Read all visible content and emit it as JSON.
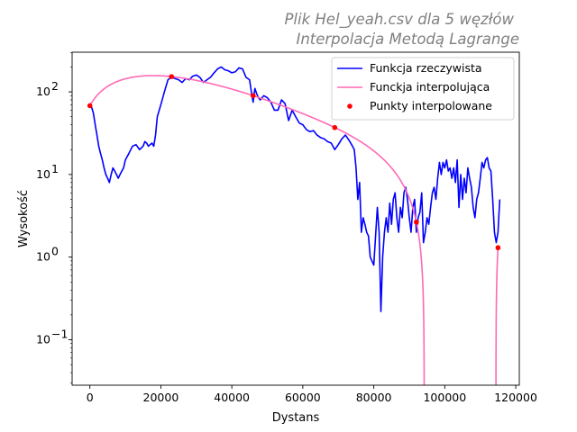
{
  "chart_data": {
    "type": "line",
    "title_line1": "Plik Hel_yeah.csv dla 5 węzłów",
    "title_line2": "Interpolacja Metodą Lagrange",
    "xlabel": "Dystans",
    "ylabel": "Wysokość",
    "xlim": [
      -5000,
      121000
    ],
    "ylim_log10": [
      -1.55,
      2.48
    ],
    "yscale": "log",
    "x_ticks": [
      0,
      20000,
      40000,
      60000,
      80000,
      100000,
      120000
    ],
    "x_tick_labels": [
      "0",
      "20000",
      "40000",
      "60000",
      "80000",
      "100000",
      "120000"
    ],
    "y_tick_exponents": [
      -1,
      0,
      1,
      2
    ],
    "legend_position": "top-right",
    "colors": {
      "actual": "#0000ff",
      "interp": "#ff69b4",
      "nodes": "#ff0000"
    },
    "legend": [
      {
        "label": "Funkcja rzeczywista",
        "style": "line",
        "color": "#0000ff"
      },
      {
        "label": "Funckja interpolująca",
        "style": "line",
        "color": "#ff69b4"
      },
      {
        "label": "Punkty interpolowane",
        "style": "marker",
        "color": "#ff0000"
      }
    ],
    "series": [
      {
        "name": "Funkcja rzeczywista",
        "color": "#0000ff",
        "x": [
          0,
          500,
          1000,
          1500,
          2000,
          2500,
          3000,
          3500,
          4000,
          4500,
          5000,
          5500,
          6000,
          6500,
          7000,
          7500,
          8000,
          8500,
          9000,
          9500,
          10000,
          11000,
          12000,
          13000,
          14000,
          15000,
          15500,
          16000,
          16500,
          17000,
          17500,
          18000,
          18500,
          19000,
          20000,
          21000,
          22000,
          23000,
          24000,
          25000,
          26000,
          27000,
          28000,
          29000,
          30000,
          31000,
          32000,
          33000,
          34000,
          35000,
          36000,
          37000,
          38000,
          39000,
          40000,
          41000,
          42000,
          43000,
          44000,
          45000,
          45500,
          46000,
          46500,
          47000,
          47500,
          48000,
          49000,
          50000,
          51000,
          52000,
          53000,
          54000,
          55000,
          56000,
          57000,
          58000,
          59000,
          60000,
          61000,
          62000,
          63000,
          64000,
          65000,
          66000,
          67000,
          68000,
          69000,
          70000,
          71000,
          72000,
          72500,
          73000,
          73500,
          74000,
          74500,
          75000,
          75500,
          76000,
          76500,
          77000,
          77500,
          78000,
          78500,
          79000,
          80000,
          81000,
          81500,
          82000,
          82500,
          83000,
          83500,
          84000,
          84500,
          85000,
          85500,
          86000,
          86500,
          87000,
          87500,
          88000,
          88500,
          89000,
          89500,
          90000,
          90500,
          91000,
          91500,
          92000,
          92500,
          93000,
          93500,
          94000,
          94500,
          95000,
          95500,
          96000,
          96500,
          97000,
          97500,
          98000,
          98500,
          99000,
          99500,
          100000,
          100500,
          101000,
          101500,
          102000,
          102500,
          103000,
          103500,
          104000,
          104500,
          105000,
          105500,
          106000,
          106500,
          107000,
          107500,
          108000,
          108500,
          109000,
          109500,
          110000,
          110500,
          111000,
          111500,
          112000,
          112500,
          113000,
          113500,
          114000,
          114500,
          115000,
          115300,
          115500
        ],
        "y": [
          68,
          65,
          55,
          40,
          30,
          22,
          18,
          15,
          12,
          10,
          9,
          8,
          10,
          12,
          11,
          10,
          9,
          10,
          11,
          12,
          15,
          18,
          22,
          23,
          20,
          22,
          25,
          24,
          22,
          23,
          24,
          22,
          30,
          50,
          70,
          100,
          140,
          150,
          145,
          140,
          130,
          145,
          140,
          155,
          160,
          150,
          130,
          140,
          150,
          170,
          190,
          200,
          185,
          180,
          170,
          175,
          195,
          190,
          150,
          140,
          100,
          75,
          110,
          95,
          85,
          80,
          90,
          85,
          75,
          60,
          60,
          80,
          72,
          45,
          60,
          50,
          42,
          40,
          35,
          33,
          34,
          30,
          28,
          27,
          25,
          24,
          20,
          23,
          27,
          30,
          28,
          26,
          24,
          22,
          20,
          12,
          5,
          8,
          2,
          3,
          2.5,
          2,
          1.8,
          1.0,
          0.8,
          4,
          2,
          0.22,
          1,
          2,
          3,
          2,
          4.5,
          2.5,
          5,
          6,
          3,
          2,
          4,
          3,
          6,
          7,
          5,
          3,
          2,
          4,
          5,
          2,
          3,
          3.5,
          6,
          1.5,
          2,
          3,
          2.5,
          4,
          6,
          7,
          5,
          9,
          14,
          10,
          14,
          12,
          15,
          11,
          12,
          9,
          12,
          8,
          15,
          4,
          10,
          5,
          9,
          6,
          12,
          9,
          7,
          4,
          3,
          5,
          6,
          9,
          14,
          12,
          15,
          16,
          12,
          11,
          5,
          2,
          1.5,
          2,
          3.5,
          5
        ]
      },
      {
        "name": "Funckja interpolująca",
        "color": "#ff69b4",
        "nodes_x": [
          0,
          23000,
          46000,
          69000,
          92000,
          115000
        ],
        "nodes_y": [
          68,
          153,
          90,
          37,
          2.65,
          1.3
        ],
        "x_range": [
          0,
          115000
        ]
      },
      {
        "name": "Punkty interpolowane",
        "color": "#ff0000",
        "x": [
          0,
          23000,
          46000,
          69000,
          92000,
          115000
        ],
        "y": [
          68,
          153,
          90,
          37,
          2.65,
          1.3
        ]
      }
    ]
  }
}
